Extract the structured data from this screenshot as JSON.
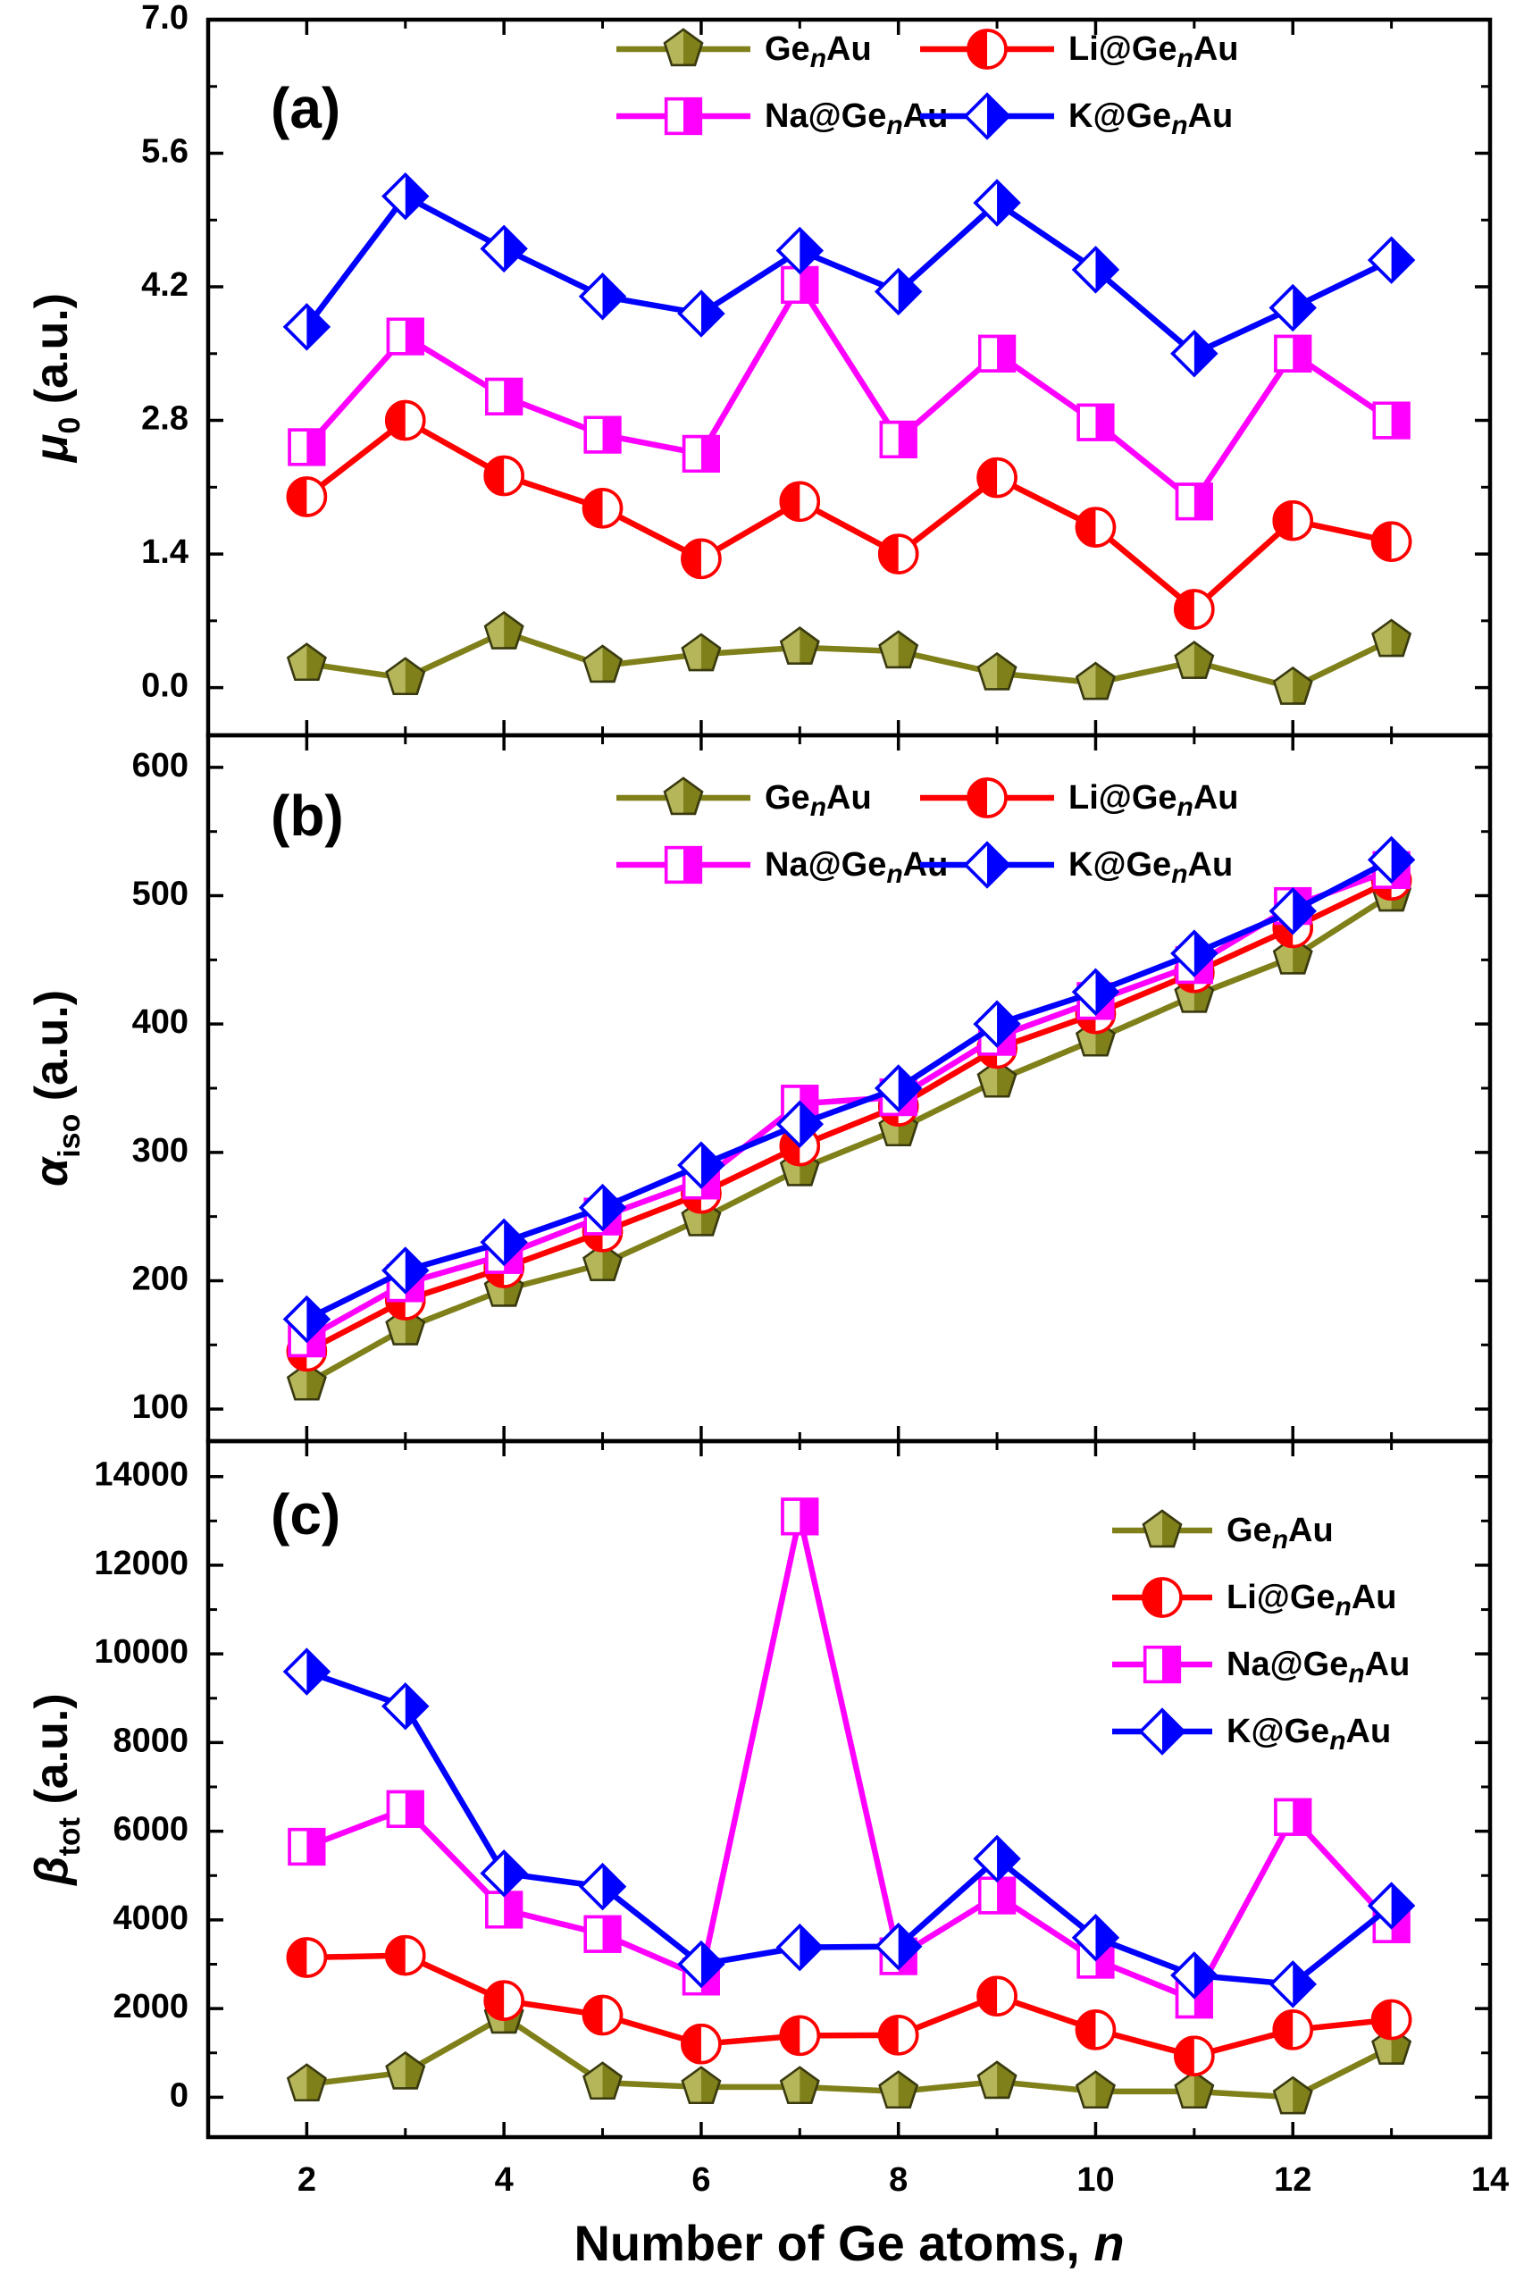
{
  "chart_data": [
    {
      "type": "line",
      "panel_label": "(a)",
      "ylabel": {
        "symbol": "μ",
        "subscript": "0",
        "units": "(a.u.)"
      },
      "ylim": [
        -0.5,
        7.0
      ],
      "yticks": [
        "0.0",
        "1.4",
        "2.8",
        "4.2",
        "5.6",
        "7.0"
      ],
      "ytick_values": [
        0.0,
        1.4,
        2.8,
        4.2,
        5.6,
        7.0
      ],
      "x": [
        2,
        3,
        4,
        5,
        6,
        7,
        8,
        9,
        10,
        11,
        12,
        13
      ],
      "legend_position": "top",
      "series": [
        {
          "name": "GenAu",
          "values": [
            0.25,
            0.1,
            0.58,
            0.23,
            0.35,
            0.42,
            0.38,
            0.15,
            0.05,
            0.27,
            0.0,
            0.5
          ]
        },
        {
          "name": "Li@GenAu",
          "values": [
            2.0,
            2.8,
            2.22,
            1.88,
            1.35,
            1.95,
            1.4,
            2.2,
            1.68,
            0.82,
            1.75,
            1.53
          ]
        },
        {
          "name": "Na@GenAu",
          "values": [
            2.52,
            3.68,
            3.05,
            2.65,
            2.45,
            4.22,
            2.6,
            3.5,
            2.78,
            1.95,
            3.5,
            2.8
          ]
        },
        {
          "name": "K@GenAu",
          "values": [
            3.78,
            5.15,
            4.6,
            4.1,
            3.92,
            4.58,
            4.15,
            5.08,
            4.38,
            3.5,
            3.98,
            4.48
          ]
        }
      ]
    },
    {
      "type": "line",
      "panel_label": "(b)",
      "ylabel": {
        "symbol": "α",
        "subscript": "iso",
        "units": "(a.u.)"
      },
      "ylim": [
        75,
        625
      ],
      "yticks": [
        "100",
        "200",
        "300",
        "400",
        "500",
        "600"
      ],
      "ytick_values": [
        100,
        200,
        300,
        400,
        500,
        600
      ],
      "x": [
        2,
        3,
        4,
        5,
        6,
        7,
        8,
        9,
        10,
        11,
        12,
        13
      ],
      "legend_position": "top",
      "series": [
        {
          "name": "GenAu",
          "values": [
            120,
            163,
            193,
            213,
            248,
            287,
            318,
            356,
            388,
            422,
            452,
            501
          ]
        },
        {
          "name": "Li@GenAu",
          "values": [
            145,
            185,
            210,
            238,
            268,
            305,
            336,
            381,
            408,
            440,
            475,
            512
          ]
        },
        {
          "name": "Na@GenAu",
          "values": [
            155,
            198,
            220,
            250,
            278,
            338,
            343,
            390,
            418,
            446,
            492,
            520
          ]
        },
        {
          "name": "K@GenAu",
          "values": [
            170,
            208,
            230,
            257,
            290,
            322,
            350,
            400,
            425,
            455,
            488,
            528
          ]
        }
      ]
    },
    {
      "type": "line",
      "panel_label": "(c)",
      "ylabel": {
        "symbol": "β",
        "subscript": "tot",
        "units": "(a.u.)"
      },
      "ylim": [
        -900,
        14800
      ],
      "yticks": [
        "0",
        "2000",
        "4000",
        "6000",
        "8000",
        "10000",
        "12000",
        "14000"
      ],
      "ytick_values": [
        0,
        2000,
        4000,
        6000,
        8000,
        10000,
        12000,
        14000
      ],
      "x": [
        2,
        3,
        4,
        5,
        6,
        7,
        8,
        9,
        10,
        11,
        12,
        13
      ],
      "legend_position": "top-right",
      "series": [
        {
          "name": "GenAu",
          "values": [
            290,
            560,
            1820,
            330,
            230,
            230,
            130,
            350,
            130,
            130,
            0,
            1120
          ]
        },
        {
          "name": "Li@GenAu",
          "values": [
            3150,
            3200,
            2180,
            1850,
            1200,
            1390,
            1400,
            2280,
            1520,
            930,
            1520,
            1750
          ]
        },
        {
          "name": "Na@GenAu",
          "values": [
            5650,
            6500,
            4230,
            3680,
            2720,
            13100,
            3180,
            4550,
            3100,
            2200,
            6320,
            3900
          ]
        },
        {
          "name": "K@GenAu",
          "values": [
            9600,
            8820,
            5050,
            4750,
            3000,
            3380,
            3400,
            5380,
            3600,
            2750,
            2550,
            4320
          ]
        }
      ]
    }
  ],
  "x_axis": {
    "xlim": [
      1,
      14
    ],
    "ticks": [
      "2",
      "4",
      "6",
      "8",
      "10",
      "12",
      "14"
    ],
    "tick_values": [
      2,
      4,
      6,
      8,
      10,
      12,
      14
    ],
    "title_prefix": "Number of Ge atoms, ",
    "title_var": "n"
  },
  "legend": {
    "labels": [
      {
        "pre": "Ge",
        "sub": "n",
        "post": "Au"
      },
      {
        "pre": "Li@Ge",
        "sub": "n",
        "post": "Au"
      },
      {
        "pre": "Na@Ge",
        "sub": "n",
        "post": "Au"
      },
      {
        "pre": "K@Ge",
        "sub": "n",
        "post": "Au"
      }
    ]
  },
  "colors": {
    "GenAu": "#80801a",
    "Li@GenAu": "#ff0000",
    "Na@GenAu": "#ff00ff",
    "K@GenAu": "#0000ff",
    "axis": "#000000"
  },
  "markers": {
    "GenAu": "pentagon-half",
    "Li@GenAu": "circle-half",
    "Na@GenAu": "square-half",
    "K@GenAu": "diamond-half"
  }
}
